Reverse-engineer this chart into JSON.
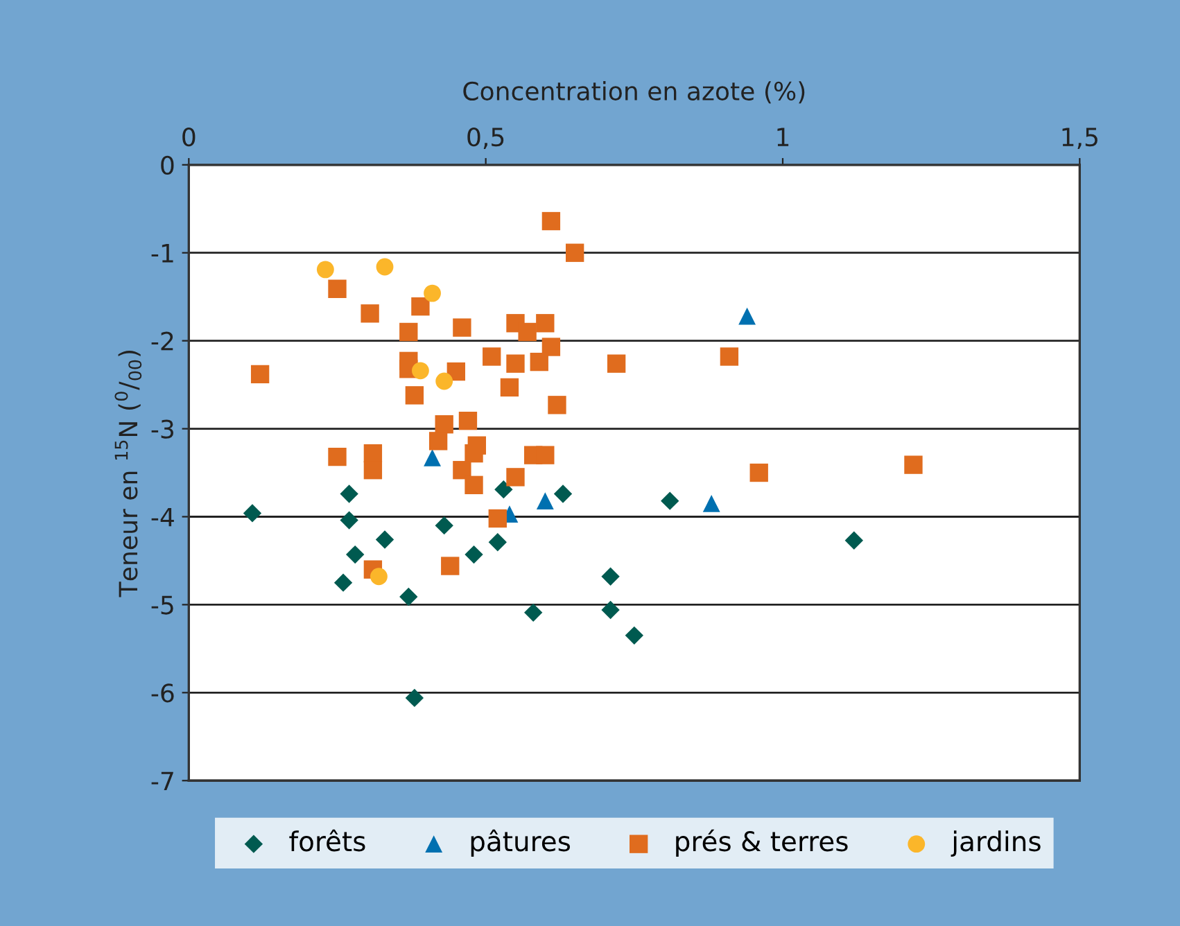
{
  "chart_data": {
    "type": "scatter",
    "xlabel": "Concentration en azote (%)",
    "ylabel": "Teneur en $^{15}$N ($^{0}$/$_{00}$)",
    "xlim": [
      0,
      1.5
    ],
    "xticks": [
      0,
      {
        "value": 0.5,
        "label": "0,5"
      },
      1,
      {
        "value": 1.5,
        "label": "1,5"
      }
    ],
    "ylim": [
      -7,
      0
    ],
    "yticks": [
      -7,
      -6,
      -5,
      -4,
      -3,
      -2,
      -1,
      0
    ],
    "grid": "y",
    "legend": "bottom",
    "series": [
      {
        "name": "forêts",
        "color": "#005a50",
        "marker": "diamond",
        "x": [
          0.107,
          0.27,
          0.27,
          0.28,
          0.26,
          0.33,
          0.43,
          0.37,
          0.38,
          0.53,
          0.48,
          0.52,
          0.58,
          0.63,
          0.71,
          0.71,
          0.75,
          0.81,
          1.12
        ],
        "values": [
          -3.96,
          -3.74,
          -4.04,
          -4.43,
          -4.75,
          -4.26,
          -4.1,
          -4.91,
          -6.06,
          -3.69,
          -4.43,
          -4.29,
          -5.09,
          -3.74,
          -4.68,
          -5.06,
          -5.35,
          -3.82,
          -4.27
        ]
      },
      {
        "name": "pâtures",
        "color": "#0070b0",
        "marker": "triangle",
        "x": [
          0.41,
          0.54,
          0.6,
          0.88,
          0.94
        ],
        "values": [
          -3.33,
          -3.97,
          -3.82,
          -3.85,
          -1.72
        ]
      },
      {
        "name": "prés & terres",
        "color": "#e06c1e",
        "marker": "square",
        "x": [
          0.61,
          0.65,
          0.25,
          0.305,
          0.39,
          0.37,
          0.46,
          0.55,
          0.6,
          0.57,
          0.61,
          0.12,
          0.37,
          0.37,
          0.51,
          0.55,
          0.59,
          0.45,
          0.38,
          0.54,
          0.62,
          0.47,
          0.43,
          0.42,
          0.485,
          0.48,
          0.25,
          0.31,
          0.31,
          0.58,
          0.6,
          0.46,
          0.48,
          0.55,
          0.52,
          0.31,
          0.44,
          0.72,
          0.91,
          0.96,
          1.22
        ],
        "values": [
          -0.64,
          -1.0,
          -1.41,
          -1.69,
          -1.61,
          -1.9,
          -1.85,
          -1.8,
          -1.8,
          -1.9,
          -2.07,
          -2.38,
          -2.23,
          -2.32,
          -2.18,
          -2.26,
          -2.24,
          -2.35,
          -2.62,
          -2.53,
          -2.73,
          -2.91,
          -2.95,
          -3.14,
          -3.19,
          -3.28,
          -3.32,
          -3.28,
          -3.47,
          -3.3,
          -3.3,
          -3.47,
          -3.64,
          -3.55,
          -4.02,
          -4.6,
          -4.56,
          -2.26,
          -2.18,
          -3.5,
          -3.41
        ]
      },
      {
        "name": "jardins",
        "color": "#fbb62a",
        "marker": "circle",
        "x": [
          0.23,
          0.33,
          0.41,
          0.39,
          0.43,
          0.32
        ],
        "values": [
          -1.19,
          -1.16,
          -1.46,
          -2.34,
          -2.46,
          -4.68
        ]
      }
    ]
  }
}
